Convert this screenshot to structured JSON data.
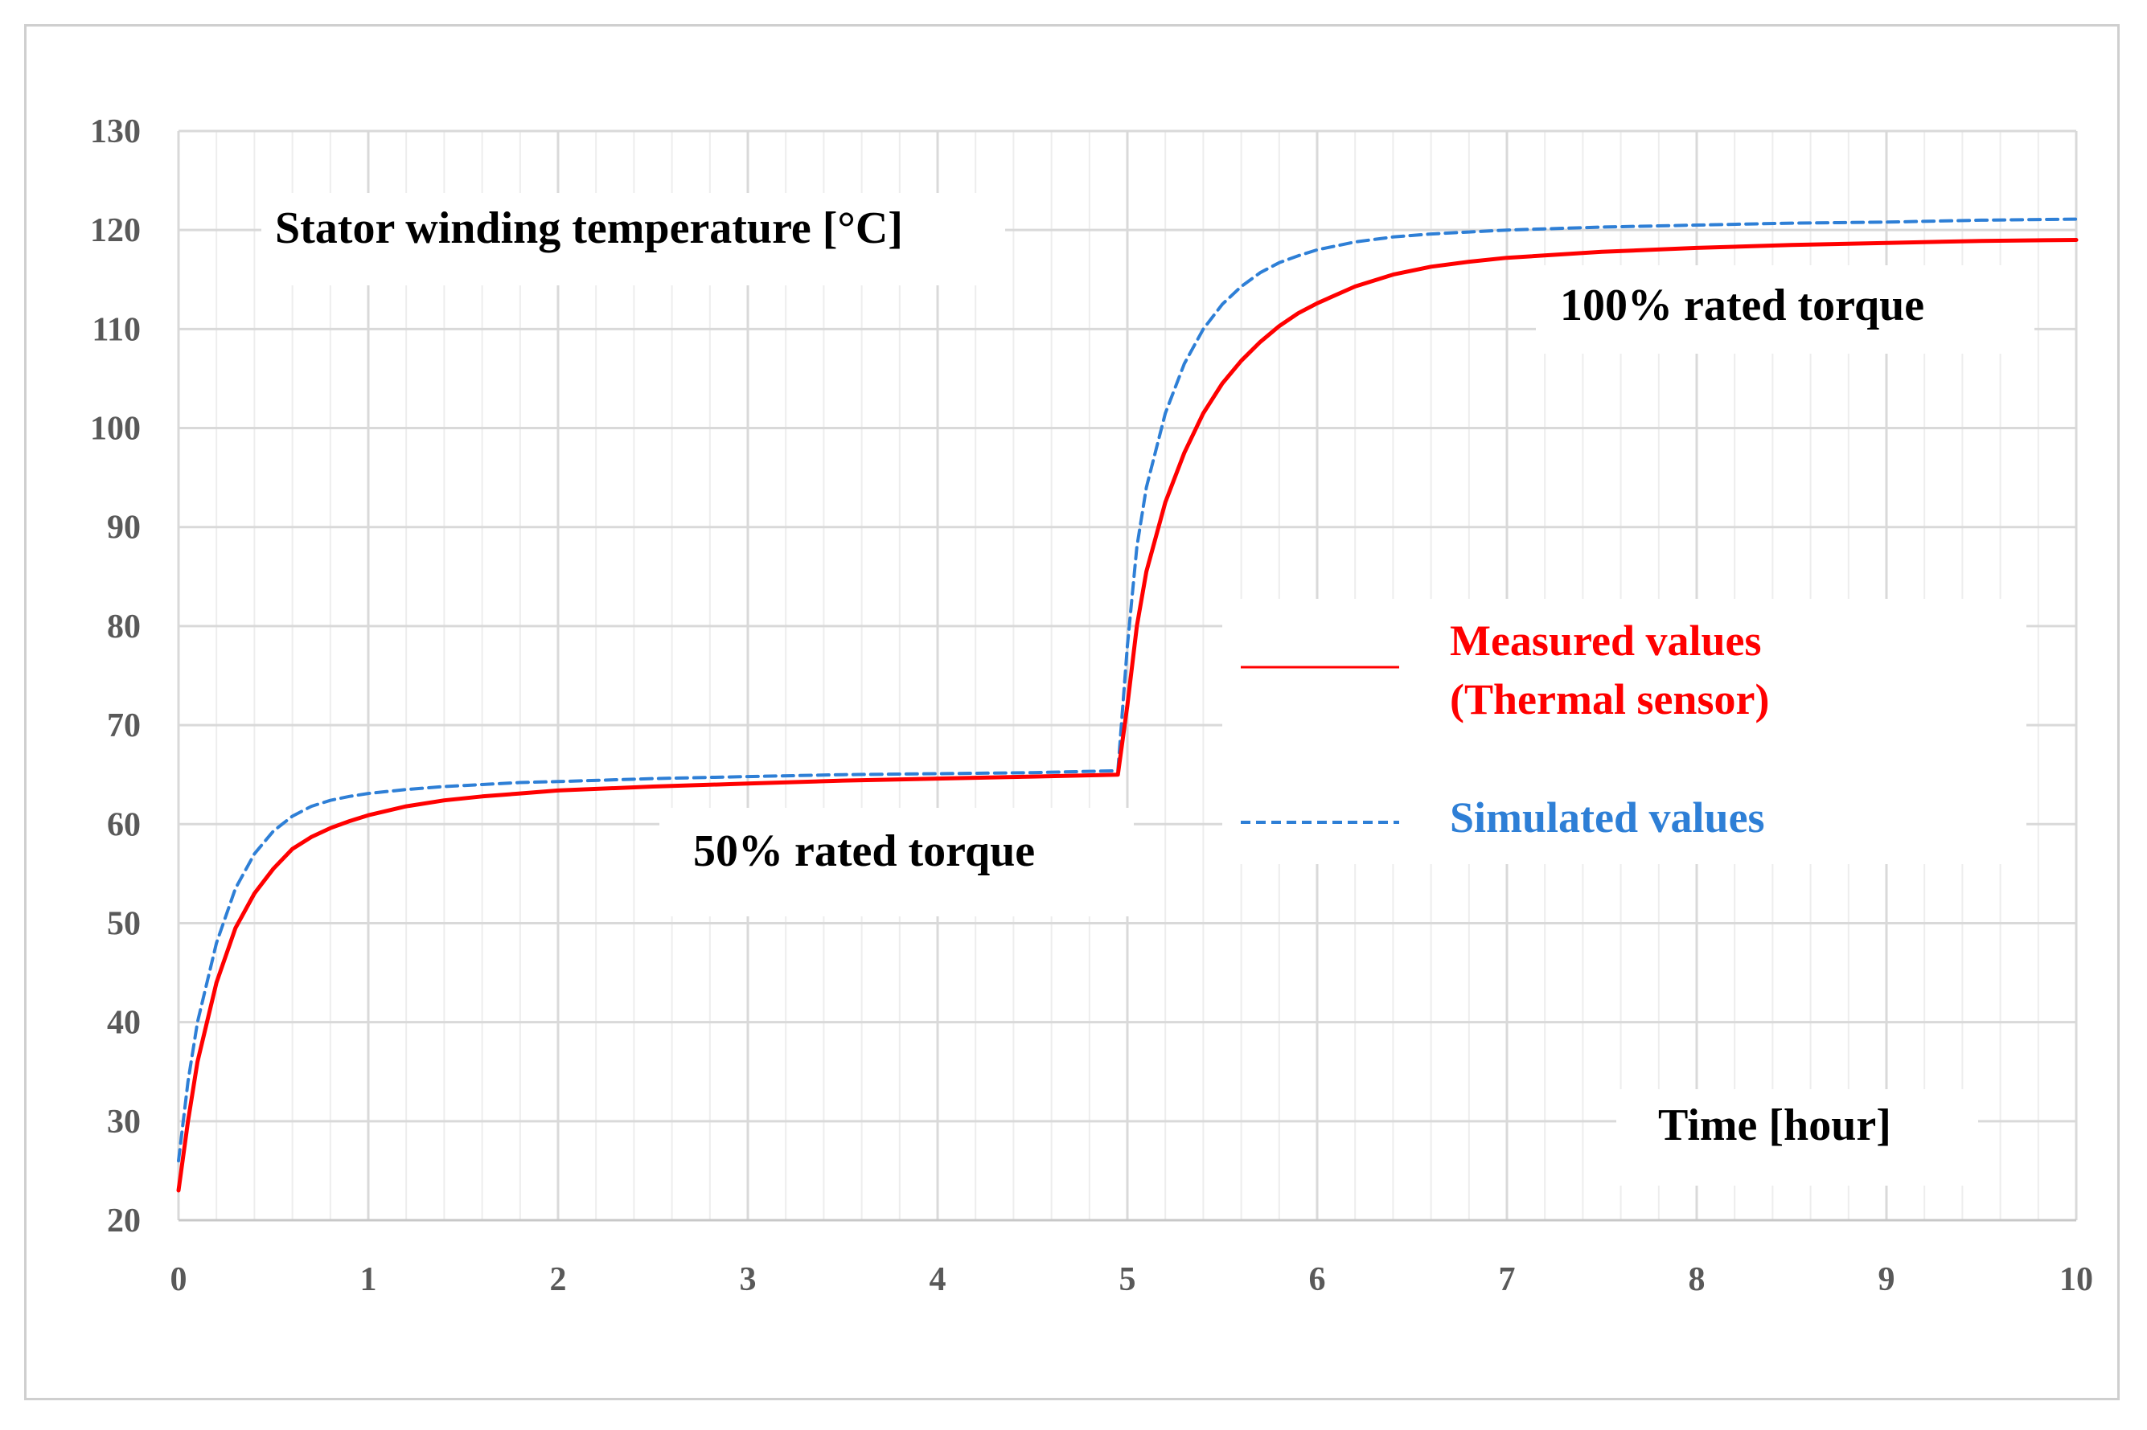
{
  "chart_data": {
    "type": "line",
    "title": "",
    "xlabel": "Time [hour]",
    "ylabel": "Stator winding temperature [°C]",
    "xlim": [
      0,
      10
    ],
    "ylim": [
      20,
      130
    ],
    "x_ticks": [
      "0",
      "1",
      "2",
      "3",
      "4",
      "5",
      "6",
      "7",
      "8",
      "9",
      "10"
    ],
    "y_ticks": [
      "20",
      "30",
      "40",
      "50",
      "60",
      "70",
      "80",
      "90",
      "100",
      "110",
      "120",
      "130"
    ],
    "grid": true,
    "annotations": {
      "low_load": "50% rated torque",
      "high_load": "100% rated torque"
    },
    "legend": {
      "placement": "center-right",
      "entries": [
        {
          "line1": "Measured values",
          "line2": "(Thermal sensor)",
          "color": "#ff0000",
          "style": "solid"
        },
        {
          "line1": "Simulated values",
          "line2": "",
          "color": "#2e7fd6",
          "style": "dashed"
        }
      ]
    },
    "series": [
      {
        "name": "Measured values (Thermal sensor)",
        "color": "#ff0000",
        "style": "solid",
        "x": [
          0,
          0.05,
          0.1,
          0.2,
          0.3,
          0.4,
          0.5,
          0.6,
          0.7,
          0.8,
          0.9,
          1.0,
          1.2,
          1.4,
          1.6,
          1.8,
          2.0,
          2.5,
          3.0,
          3.5,
          4.0,
          4.5,
          4.95,
          5.0,
          5.05,
          5.1,
          5.2,
          5.3,
          5.4,
          5.5,
          5.6,
          5.7,
          5.8,
          5.9,
          6.0,
          6.2,
          6.4,
          6.6,
          6.8,
          7.0,
          7.5,
          8.0,
          8.5,
          9.0,
          9.5,
          10.0
        ],
        "y": [
          23,
          30,
          36,
          44,
          49.5,
          53,
          55.5,
          57.5,
          58.7,
          59.6,
          60.3,
          60.9,
          61.8,
          62.4,
          62.8,
          63.1,
          63.4,
          63.8,
          64.1,
          64.4,
          64.6,
          64.8,
          65.0,
          72,
          80,
          85.5,
          92.5,
          97.5,
          101.5,
          104.5,
          106.8,
          108.7,
          110.3,
          111.6,
          112.6,
          114.3,
          115.5,
          116.3,
          116.8,
          117.2,
          117.8,
          118.2,
          118.5,
          118.7,
          118.9,
          119.0
        ]
      },
      {
        "name": "Simulated values",
        "color": "#2e7fd6",
        "style": "dashed",
        "x": [
          0,
          0.05,
          0.1,
          0.2,
          0.3,
          0.4,
          0.5,
          0.6,
          0.7,
          0.8,
          0.9,
          1.0,
          1.2,
          1.4,
          1.6,
          1.8,
          2.0,
          2.5,
          3.0,
          3.5,
          4.0,
          4.5,
          4.95,
          5.0,
          5.05,
          5.1,
          5.2,
          5.3,
          5.4,
          5.5,
          5.6,
          5.7,
          5.8,
          5.9,
          6.0,
          6.2,
          6.4,
          6.6,
          6.8,
          7.0,
          7.5,
          8.0,
          8.5,
          9.0,
          9.5,
          10.0
        ],
        "y": [
          26,
          34,
          40,
          48,
          53.5,
          57,
          59.3,
          60.8,
          61.8,
          62.4,
          62.8,
          63.1,
          63.5,
          63.8,
          64.0,
          64.2,
          64.3,
          64.6,
          64.8,
          65.0,
          65.1,
          65.2,
          65.4,
          78,
          88,
          94,
          101.5,
          106.5,
          110.0,
          112.5,
          114.3,
          115.7,
          116.7,
          117.4,
          118.0,
          118.8,
          119.3,
          119.6,
          119.8,
          120.0,
          120.3,
          120.5,
          120.7,
          120.8,
          121.0,
          121.1
        ]
      }
    ]
  }
}
